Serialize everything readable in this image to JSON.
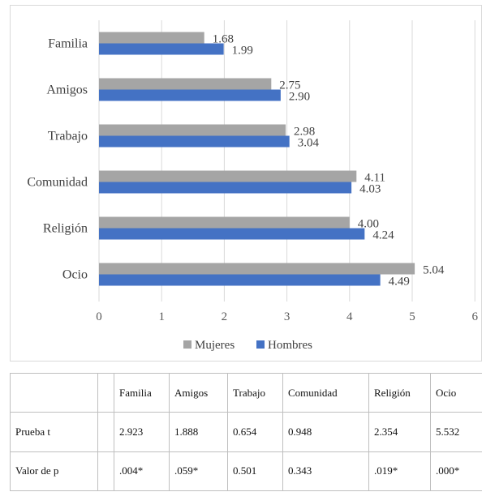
{
  "chart_data": {
    "type": "bar",
    "orientation": "horizontal",
    "categories": [
      "Familia",
      "Amigos",
      "Trabajo",
      "Comunidad",
      "Religión",
      "Ocio"
    ],
    "series": [
      {
        "name": "Mujeres",
        "color": "#a5a5a5",
        "values": [
          1.68,
          2.75,
          2.98,
          4.11,
          4.0,
          5.04
        ],
        "labels": [
          "1.68",
          "2.75",
          "2.98",
          "4.11",
          "4.00",
          "5.04"
        ]
      },
      {
        "name": "Hombres",
        "color": "#4472c4",
        "values": [
          1.99,
          2.9,
          3.04,
          4.03,
          4.24,
          4.49
        ],
        "labels": [
          "1.99",
          "2.90",
          "3.04",
          "4.03",
          "4.24",
          "4.49"
        ]
      }
    ],
    "xlim": [
      0,
      6
    ],
    "xticks": [
      "0",
      "1",
      "2",
      "3",
      "4",
      "5",
      "6"
    ],
    "grid": true,
    "legend": "bottom",
    "title": "",
    "xlabel": "",
    "ylabel": ""
  },
  "table": {
    "headers": [
      "",
      "",
      "Familia",
      "Amigos",
      "Trabajo",
      "Comunidad",
      "Religión",
      "Ocio"
    ],
    "rows": [
      {
        "label": "Prueba t",
        "values": [
          "2.923",
          "1.888",
          "0.654",
          "0.948",
          "2.354",
          "5.532"
        ]
      },
      {
        "label": "Valor de p",
        "values": [
          ".004*",
          ".059*",
          "0.501",
          "0.343",
          ".019*",
          ".000*"
        ]
      }
    ]
  }
}
